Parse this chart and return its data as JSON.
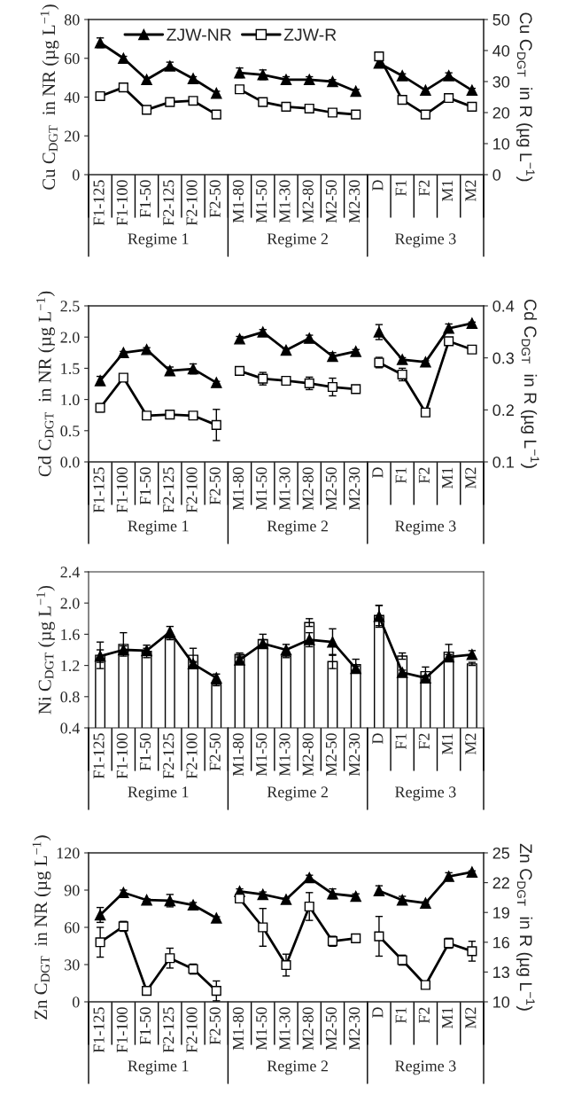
{
  "chart_data": [
    {
      "type": "line",
      "categories": [
        "F1-125",
        "F1-100",
        "F1-50",
        "F2-125",
        "F2-100",
        "F2-50",
        "M1-80",
        "M1-50",
        "M1-30",
        "M2-80",
        "M2-50",
        "M2-30",
        "D",
        "F1",
        "F2",
        "M1",
        "M2"
      ],
      "ylabel": "Cu C$_{DGT}$  in NR (µg L$^{−1}$)",
      "y2label": "Cu C$_{DGT}$  in R (µg L$^{−1}$)",
      "ylim": [
        0,
        80
      ],
      "yticks": [
        0,
        20,
        40,
        60,
        80
      ],
      "y2lim": [
        0,
        50
      ],
      "y2ticks": [
        0,
        10,
        20,
        30,
        40,
        50
      ],
      "legend": "top left",
      "annotations": [
        "Regime 1",
        "Regime 2",
        "Regime 3"
      ],
      "series": [
        {
          "name": "ZJW-NR",
          "color": "#000000",
          "marker": "triangle",
          "values": [
            68,
            60,
            49,
            56,
            49.5,
            42,
            null,
            null,
            null,
            null,
            null,
            null,
            null,
            null,
            null,
            null,
            null
          ],
          "errors": [
            2.5,
            1,
            1,
            2,
            1,
            1,
            null,
            null,
            null,
            null,
            null,
            null,
            null,
            null,
            null,
            null,
            null
          ]
        },
        {
          "color": "#000000",
          "marker": "triangle",
          "values": [
            null,
            null,
            null,
            null,
            null,
            null,
            52.5,
            51.5,
            49,
            49,
            48,
            43,
            null,
            null,
            null,
            null,
            null
          ],
          "errors": [
            null,
            null,
            null,
            null,
            null,
            null,
            2.5,
            2.5,
            1.5,
            1.5,
            1,
            1,
            null,
            null,
            null,
            null,
            null
          ]
        },
        {
          "color": "#000000",
          "marker": "triangle",
          "values": [
            null,
            null,
            null,
            null,
            null,
            null,
            null,
            null,
            null,
            null,
            null,
            null,
            57.5,
            51,
            43.5,
            51,
            43.5
          ],
          "errors": [
            null,
            null,
            null,
            null,
            null,
            null,
            null,
            null,
            null,
            null,
            null,
            null,
            2,
            1,
            1,
            1.5,
            1
          ]
        },
        {
          "name": "ZJW-R",
          "color": "#000000",
          "marker": "square",
          "axis": "y2",
          "values": [
            25.3,
            28.1,
            20.9,
            23.4,
            23.8,
            19.4,
            null,
            null,
            null,
            null,
            null,
            null,
            null,
            null,
            null,
            null,
            null
          ]
        },
        {
          "color": "#000000",
          "marker": "square",
          "axis": "y2",
          "values": [
            null,
            null,
            null,
            null,
            null,
            null,
            27.5,
            23.4,
            21.9,
            21.3,
            20,
            19.4,
            null,
            null,
            null,
            null,
            null
          ]
        },
        {
          "color": "#000000",
          "marker": "square",
          "axis": "y2",
          "values": [
            null,
            null,
            null,
            null,
            null,
            null,
            null,
            null,
            null,
            null,
            null,
            null,
            38.1,
            24.1,
            19.4,
            24.7,
            21.9
          ]
        }
      ]
    },
    {
      "type": "line",
      "categories": [
        "F1-125",
        "F1-100",
        "F1-50",
        "F2-125",
        "F2-100",
        "F2-50",
        "M1-80",
        "M1-50",
        "M1-30",
        "M2-80",
        "M2-50",
        "M2-30",
        "D",
        "F1",
        "F2",
        "M1",
        "M2"
      ],
      "ylabel": "Cd C$_{DGT}$  in NR (µg L$^{−1}$)",
      "y2label": "Cd C$_{DGT}$  in R (µg L$^{−1}$)",
      "ylim": [
        0,
        2.5
      ],
      "yticks": [
        {
          "value": 0,
          "label": "0.0"
        },
        0.5,
        {
          "value": 1,
          "label": "1.0"
        },
        1.5,
        {
          "value": 2,
          "label": "2.0"
        },
        2.5
      ],
      "y2lim": [
        0.1,
        0.4
      ],
      "y2ticks": [
        0.1,
        0.2,
        0.3,
        0.4
      ],
      "annotations": [
        "Regime 1",
        "Regime 2",
        "Regime 3"
      ],
      "series": [
        {
          "color": "#000000",
          "marker": "triangle",
          "values": [
            1.3,
            1.75,
            1.8,
            1.46,
            1.49,
            1.27,
            null,
            null,
            null,
            null,
            null,
            null,
            null,
            null,
            null,
            null,
            null
          ],
          "errors": [
            0.07,
            0.02,
            0.03,
            0.06,
            0.08,
            0.02,
            null,
            null,
            null,
            null,
            null,
            null,
            null,
            null,
            null,
            null,
            null
          ]
        },
        {
          "color": "#000000",
          "marker": "triangle",
          "values": [
            null,
            null,
            null,
            null,
            null,
            null,
            1.97,
            2.08,
            1.79,
            1.98,
            1.69,
            1.77,
            null,
            null,
            null,
            null,
            null
          ],
          "errors": [
            null,
            null,
            null,
            null,
            null,
            null,
            0.04,
            0.04,
            0.02,
            0.05,
            0.06,
            0.03,
            null,
            null,
            null,
            null,
            null
          ]
        },
        {
          "color": "#000000",
          "marker": "triangle",
          "values": [
            null,
            null,
            null,
            null,
            null,
            null,
            null,
            null,
            null,
            null,
            null,
            null,
            2.08,
            1.64,
            1.6,
            2.14,
            2.22
          ],
          "errors": [
            null,
            null,
            null,
            null,
            null,
            null,
            null,
            null,
            null,
            null,
            null,
            null,
            0.12,
            0.03,
            0.02,
            0.07,
            0.02
          ]
        },
        {
          "color": "#000000",
          "marker": "square",
          "axis": "y2",
          "values": [
            0.204,
            0.262,
            0.189,
            0.191,
            0.189,
            0.171,
            null,
            null,
            null,
            null,
            null,
            null,
            null,
            null,
            null,
            null,
            null
          ],
          "errors": [
            0.008,
            0.004,
            0.006,
            0.007,
            0.004,
            0.03,
            null,
            null,
            null,
            null,
            null,
            null,
            null,
            null,
            null,
            null,
            null
          ]
        },
        {
          "color": "#000000",
          "marker": "square",
          "axis": "y2",
          "values": [
            null,
            null,
            null,
            null,
            null,
            null,
            0.275,
            0.26,
            0.256,
            0.251,
            0.244,
            0.24,
            null,
            null,
            null,
            null,
            null
          ],
          "errors": [
            null,
            null,
            null,
            null,
            null,
            null,
            0.004,
            0.012,
            0.008,
            0.012,
            0.017,
            0.002,
            null,
            null,
            null,
            null,
            null
          ]
        },
        {
          "color": "#000000",
          "marker": "square",
          "axis": "y2",
          "values": [
            null,
            null,
            null,
            null,
            null,
            null,
            null,
            null,
            null,
            null,
            null,
            null,
            0.291,
            0.268,
            0.195,
            0.332,
            0.316
          ],
          "errors": [
            null,
            null,
            null,
            null,
            null,
            null,
            null,
            null,
            null,
            null,
            null,
            null,
            0.01,
            0.012,
            0.003,
            null,
            0.003
          ]
        }
      ]
    },
    {
      "type": "line",
      "categories": [
        "F1-125",
        "F1-100",
        "F1-50",
        "F2-125",
        "F2-100",
        "F2-50",
        "M1-80",
        "M1-50",
        "M1-30",
        "M2-80",
        "M2-50",
        "M2-30",
        "D",
        "F1",
        "F2",
        "M1",
        "M2"
      ],
      "ylabel": "Ni C$_{DGT}$ (µg L$^{−1}$)",
      "ylim": [
        0.4,
        2.4
      ],
      "yticks": [
        0.4,
        0.8,
        1.2,
        1.6,
        {
          "value": 2,
          "label": "2.0"
        },
        2.4
      ],
      "annotations": [
        "Regime 1",
        "Regime 2",
        "Regime 3"
      ],
      "series": [
        {
          "type": "bar",
          "color": "#ffffff",
          "values": [
            1.33,
            1.47,
            1.38,
            1.55,
            1.33,
            0.96,
            1.34,
            1.53,
            1.32,
            1.75,
            1.25,
            1.21,
            1.84,
            1.32,
            1.12,
            1.37,
            1.22
          ],
          "errors": [
            0.17,
            0.15,
            0.08,
            0.02,
            0.09,
            0.02,
            0.02,
            0.07,
            0.02,
            0.05,
            0.09,
            0.07,
            0.13,
            0.04,
            0.06,
            0.1,
            0.02
          ]
        },
        {
          "color": "#000000",
          "marker": "triangle",
          "values": [
            1.32,
            1.4,
            1.39,
            1.63,
            1.22,
            1.04,
            null,
            null,
            null,
            null,
            null,
            null,
            null,
            null,
            null,
            null,
            null
          ],
          "errors": [
            0.08,
            0.05,
            0.03,
            0.07,
            0.03,
            0.05,
            null,
            null,
            null,
            null,
            null,
            null,
            null,
            null,
            null,
            null,
            null
          ]
        },
        {
          "color": "#000000",
          "marker": "triangle",
          "values": [
            null,
            null,
            null,
            null,
            null,
            null,
            1.27,
            1.48,
            1.4,
            1.53,
            1.5,
            1.16,
            null,
            null,
            null,
            null,
            null
          ],
          "errors": [
            null,
            null,
            null,
            null,
            null,
            null,
            0.03,
            0.05,
            0.07,
            0.09,
            0.17,
            0.03,
            null,
            null,
            null,
            null,
            null
          ]
        },
        {
          "color": "#000000",
          "marker": "triangle",
          "values": [
            null,
            null,
            null,
            null,
            null,
            null,
            null,
            null,
            null,
            null,
            null,
            null,
            1.83,
            1.11,
            1.04,
            1.31,
            1.34
          ],
          "errors": [
            null,
            null,
            null,
            null,
            null,
            null,
            null,
            null,
            null,
            null,
            null,
            null,
            0.14,
            0.03,
            0.03,
            0.03,
            0.05
          ]
        }
      ]
    },
    {
      "type": "line",
      "categories": [
        "F1-125",
        "F1-100",
        "F1-50",
        "F2-125",
        "F2-100",
        "F2-50",
        "M1-80",
        "M1-50",
        "M1-30",
        "M2-80",
        "M2-50",
        "M2-30",
        "D",
        "F1",
        "F2",
        "M1",
        "M2"
      ],
      "ylabel": "Zn C$_{DGT}$  in NR (µg L$^{−1}$)",
      "y2label": "Zn C$_{DGT}$  in R (µg L$^{−1}$)",
      "ylim": [
        0,
        120
      ],
      "yticks": [
        0,
        30,
        60,
        90,
        120
      ],
      "y2lim": [
        10,
        25
      ],
      "y2ticks": [
        10,
        13,
        16,
        19,
        22,
        25
      ],
      "annotations": [
        "Regime 1",
        "Regime 2",
        "Regime 3"
      ],
      "series": [
        {
          "color": "#000000",
          "marker": "triangle",
          "values": [
            70,
            88,
            82,
            81.5,
            78,
            67.5,
            null,
            null,
            null,
            null,
            null,
            null,
            null,
            null,
            null,
            null,
            null
          ],
          "errors": [
            6,
            2,
            1,
            5,
            2,
            1,
            null,
            null,
            null,
            null,
            null,
            null,
            null,
            null,
            null,
            null,
            null
          ]
        },
        {
          "color": "#000000",
          "marker": "triangle",
          "values": [
            null,
            null,
            null,
            null,
            null,
            null,
            89,
            86.5,
            82.5,
            100,
            87,
            85,
            null,
            null,
            null,
            null,
            null
          ],
          "errors": [
            null,
            null,
            null,
            null,
            null,
            null,
            2,
            2,
            1,
            2,
            4,
            2,
            null,
            null,
            null,
            null,
            null
          ]
        },
        {
          "color": "#000000",
          "marker": "triangle",
          "values": [
            null,
            null,
            null,
            null,
            null,
            null,
            null,
            null,
            null,
            null,
            null,
            null,
            89.5,
            82,
            79.5,
            101,
            104.5
          ],
          "errors": [
            null,
            null,
            null,
            null,
            null,
            null,
            null,
            null,
            null,
            null,
            null,
            null,
            4,
            3,
            1,
            3,
            1
          ]
        },
        {
          "color": "#000000",
          "marker": "square",
          "axis": "y2",
          "values": [
            16.0,
            17.6,
            11.1,
            14.4,
            13.3,
            11.1,
            null,
            null,
            null,
            null,
            null,
            null,
            null,
            null,
            null,
            null,
            null
          ],
          "errors": [
            1.5,
            0.5,
            0.2,
            1.0,
            0.5,
            1.0,
            null,
            null,
            null,
            null,
            null,
            null,
            null,
            null,
            null,
            null,
            null
          ]
        },
        {
          "color": "#000000",
          "marker": "square",
          "axis": "y2",
          "values": [
            null,
            null,
            null,
            null,
            null,
            null,
            20.4,
            17.5,
            13.7,
            19.6,
            16.1,
            16.4,
            null,
            null,
            null,
            null,
            null
          ],
          "errors": [
            null,
            null,
            null,
            null,
            null,
            null,
            null,
            1.9,
            1.1,
            1.4,
            0.5,
            0.2,
            null,
            null,
            null,
            null,
            null
          ]
        },
        {
          "color": "#000000",
          "marker": "square",
          "axis": "y2",
          "values": [
            null,
            null,
            null,
            null,
            null,
            null,
            null,
            null,
            null,
            null,
            null,
            null,
            16.6,
            14.2,
            11.7,
            15.9,
            15.1
          ],
          "errors": [
            null,
            null,
            null,
            null,
            null,
            null,
            null,
            null,
            null,
            null,
            null,
            null,
            2.0,
            0.5,
            0.2,
            0.5,
            1.0
          ]
        }
      ]
    }
  ]
}
